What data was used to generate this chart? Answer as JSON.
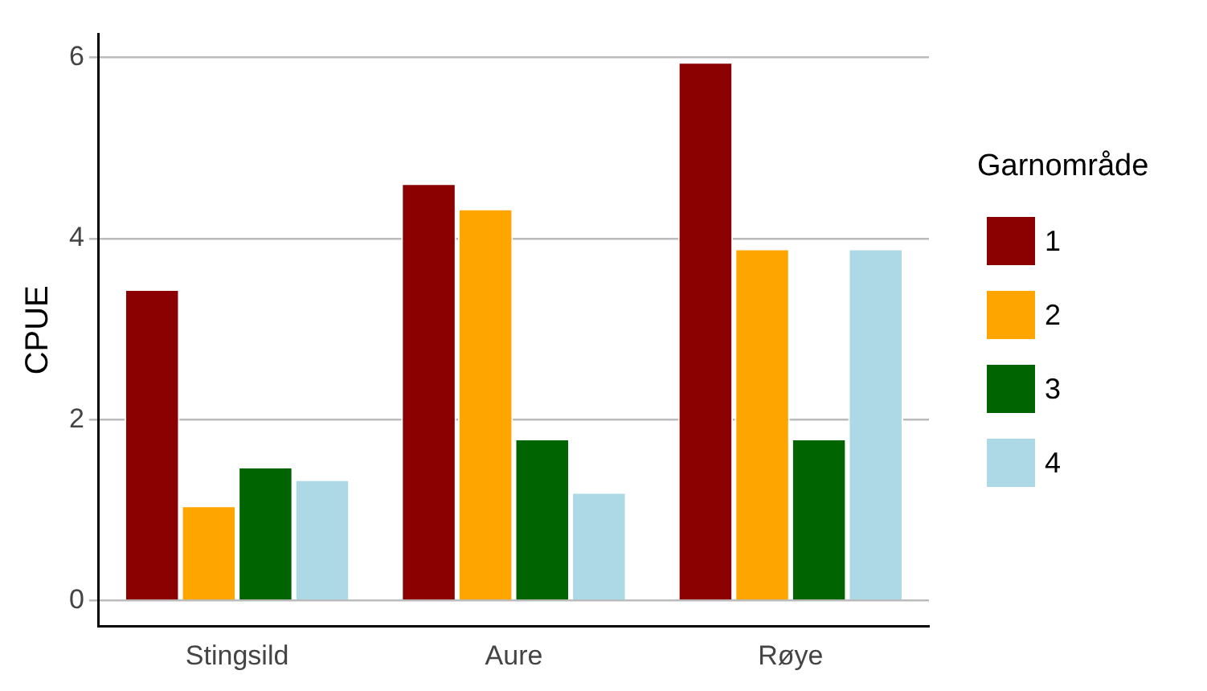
{
  "chart_data": {
    "type": "bar",
    "ylabel": "CPUE",
    "legend_title": "Garnområde",
    "categories": [
      "Stingsild",
      "Aure",
      "Røye"
    ],
    "series": [
      {
        "name": "1",
        "color": "#8b0000",
        "values": [
          3.44,
          4.61,
          5.95
        ]
      },
      {
        "name": "2",
        "color": "#ffa500",
        "values": [
          1.05,
          4.33,
          3.89
        ]
      },
      {
        "name": "3",
        "color": "#006400",
        "values": [
          1.48,
          1.79,
          1.79
        ]
      },
      {
        "name": "4",
        "color": "#add8e6",
        "values": [
          1.34,
          1.2,
          3.89
        ]
      }
    ],
    "ylim": [
      -0.28,
      6.26
    ],
    "yticks": [
      0,
      2,
      4,
      6
    ],
    "grid": "y",
    "legend": "right"
  }
}
